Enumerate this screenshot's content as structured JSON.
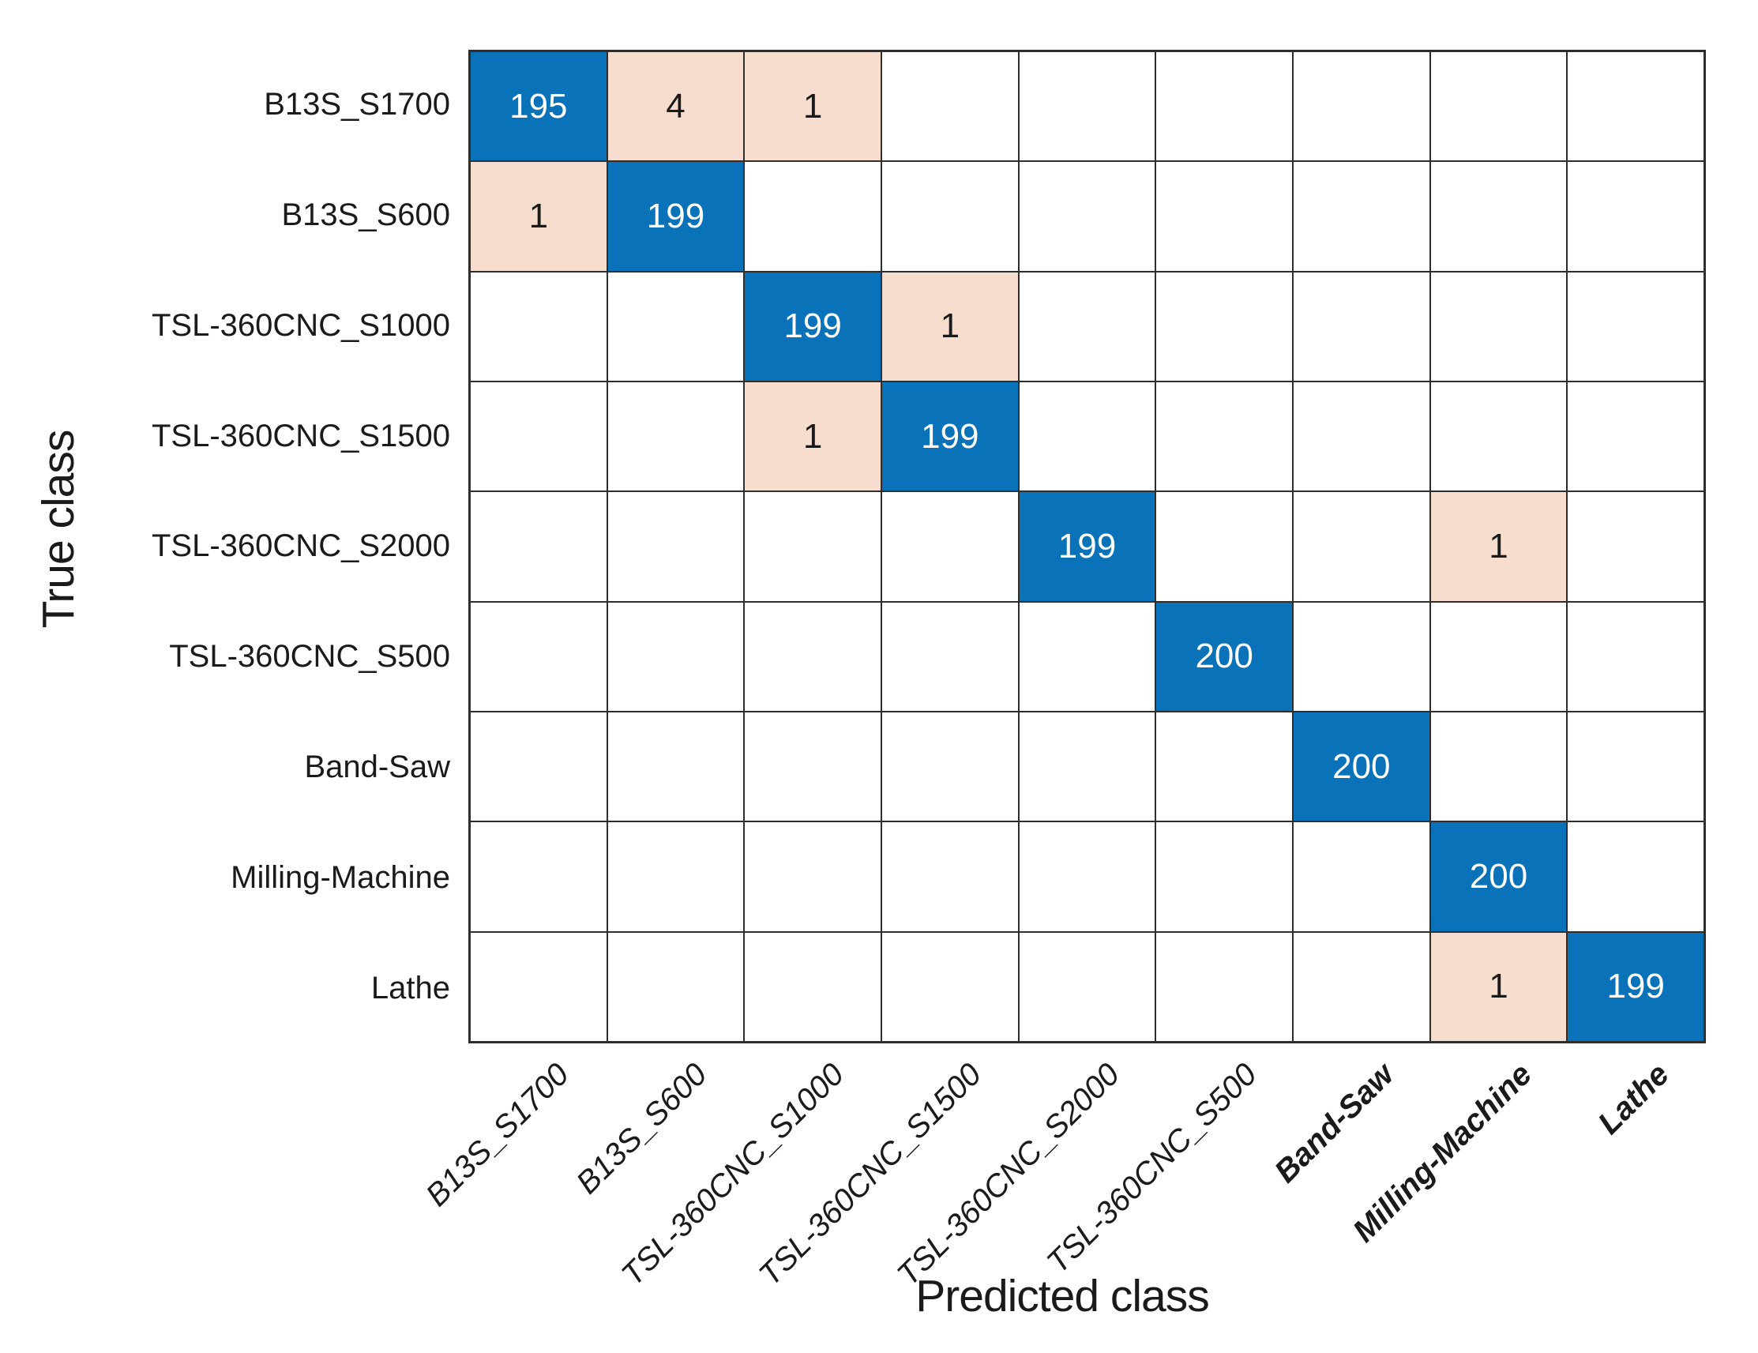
{
  "chart_data": {
    "type": "heatmap",
    "subtype": "confusion-matrix",
    "title": "",
    "xlabel": "Predicted class",
    "ylabel": "True class",
    "classes": [
      "B13S_S1700",
      "B13S_S600",
      "TSL-360CNC_S1000",
      "TSL-360CNC_S1500",
      "TSL-360CNC_S2000",
      "TSL-360CNC_S500",
      "Band-Saw",
      "Milling-Machine",
      "Lathe"
    ],
    "matrix": [
      [
        195,
        4,
        1,
        0,
        0,
        0,
        0,
        0,
        0
      ],
      [
        1,
        199,
        0,
        0,
        0,
        0,
        0,
        0,
        0
      ],
      [
        0,
        0,
        199,
        1,
        0,
        0,
        0,
        0,
        0
      ],
      [
        0,
        0,
        1,
        199,
        0,
        0,
        0,
        0,
        0
      ],
      [
        0,
        0,
        0,
        0,
        199,
        0,
        0,
        1,
        0
      ],
      [
        0,
        0,
        0,
        0,
        0,
        200,
        0,
        0,
        0
      ],
      [
        0,
        0,
        0,
        0,
        0,
        0,
        200,
        0,
        0
      ],
      [
        0,
        0,
        0,
        0,
        0,
        0,
        0,
        200,
        0
      ],
      [
        0,
        0,
        0,
        0,
        0,
        0,
        0,
        1,
        199
      ]
    ],
    "x_tick_bold_labels": [
      "Band-Saw",
      "Milling-Machine",
      "Lathe"
    ],
    "grid_on": true,
    "legend_position": "none",
    "colors": {
      "diagonal_cell": "#0a72b8",
      "off_diagonal_cell": "#f6ddce",
      "empty_cell": "#ffffff",
      "grid_line": "#2e2e2e",
      "diagonal_text": "#ffffff",
      "off_diagonal_text": "#1a1a1a",
      "label_text": "#1a1a1a"
    }
  }
}
